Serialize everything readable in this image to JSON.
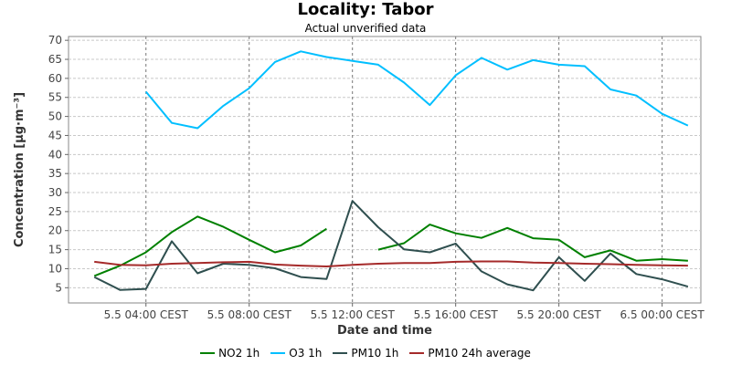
{
  "chart_data": {
    "type": "line",
    "title": "Locality: Tabor",
    "subtitle": "Actual unverified data",
    "xlabel": "Date and time",
    "ylabel": "Concentration [µg·m⁻³]",
    "ylim": [
      1,
      71
    ],
    "yticks": [
      5,
      10,
      15,
      20,
      25,
      30,
      35,
      40,
      45,
      50,
      55,
      60,
      65,
      70
    ],
    "x": [
      "5.5 02:00",
      "5.5 03:00",
      "5.5 04:00",
      "5.5 05:00",
      "5.5 06:00",
      "5.5 07:00",
      "5.5 08:00",
      "5.5 09:00",
      "5.5 10:00",
      "5.5 11:00",
      "5.5 12:00",
      "5.5 13:00",
      "5.5 14:00",
      "5.5 15:00",
      "5.5 16:00",
      "5.5 17:00",
      "5.5 18:00",
      "5.5 19:00",
      "5.5 20:00",
      "5.5 21:00",
      "5.5 22:00",
      "5.5 23:00",
      "6.5 00:00",
      "6.5 01:00"
    ],
    "xlim": [
      "5.5 01:00",
      "6.5 01:30"
    ],
    "xticks": [
      {
        "at": "5.5 04:00",
        "label": "5.5 04:00 CEST"
      },
      {
        "at": "5.5 08:00",
        "label": "5.5 08:00 CEST"
      },
      {
        "at": "5.5 12:00",
        "label": "5.5 12:00 CEST"
      },
      {
        "at": "5.5 16:00",
        "label": "5.5 16:00 CEST"
      },
      {
        "at": "5.5 20:00",
        "label": "5.5 20:00 CEST"
      },
      {
        "at": "6.5 00:00",
        "label": "6.5 00:00 CEST"
      }
    ],
    "grid": true,
    "legend_position": "bottom",
    "series": [
      {
        "name": "NO2 1h",
        "color": "#008000",
        "values": [
          8.1,
          10.8,
          14.3,
          19.6,
          23.7,
          21.0,
          17.6,
          14.3,
          16.1,
          20.5,
          null,
          15.0,
          16.7,
          21.6,
          19.3,
          18.1,
          20.7,
          18.0,
          17.6,
          13.0,
          14.8,
          12.1,
          12.5,
          12.1
        ]
      },
      {
        "name": "O3 1h",
        "color": "#00bfff",
        "values": [
          null,
          null,
          56.5,
          48.3,
          46.9,
          52.8,
          57.4,
          64.3,
          67.1,
          65.6,
          64.6,
          63.6,
          58.9,
          53.0,
          60.8,
          65.4,
          62.3,
          64.8,
          63.6,
          63.2,
          57.1,
          55.5,
          50.7,
          47.6
        ]
      },
      {
        "name": "PM10 1h",
        "color": "#2f4f4f",
        "values": [
          7.8,
          4.4,
          4.7,
          17.2,
          8.8,
          11.3,
          11.0,
          10.1,
          7.8,
          7.3,
          27.8,
          20.9,
          15.1,
          14.3,
          16.6,
          9.3,
          5.9,
          4.3,
          13.0,
          6.8,
          14.0,
          8.6,
          7.2,
          5.3
        ]
      },
      {
        "name": "PM10 24h average",
        "color": "#a52a2a",
        "values": [
          11.8,
          11.0,
          10.9,
          11.3,
          11.5,
          11.7,
          11.8,
          11.1,
          10.8,
          10.6,
          11.0,
          11.3,
          11.5,
          11.5,
          11.8,
          11.9,
          11.9,
          11.6,
          11.5,
          11.3,
          11.2,
          11.0,
          10.9,
          10.8
        ]
      }
    ]
  }
}
